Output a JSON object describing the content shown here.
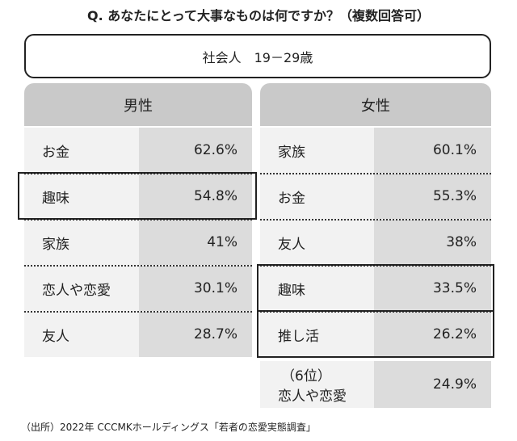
{
  "question": "Q. あなたにとって大事なものは何ですか？（複数回答可）",
  "segment": "社会人　19－29歳",
  "columns": [
    {
      "header": "男性",
      "rows": [
        {
          "item": "お金",
          "value": "62.6%"
        },
        {
          "item": "趣味",
          "value": "54.8%"
        },
        {
          "item": "家族",
          "value": "41%"
        },
        {
          "item": "恋人や恋愛",
          "value": "30.1%"
        },
        {
          "item": "友人",
          "value": "28.7%"
        }
      ]
    },
    {
      "header": "女性",
      "rows": [
        {
          "item": "家族",
          "value": "60.1%"
        },
        {
          "item": "お金",
          "value": "55.3%"
        },
        {
          "item": "友人",
          "value": "38%"
        },
        {
          "item": "趣味",
          "value": "33.5%"
        },
        {
          "item": "推し活",
          "value": "26.2%"
        },
        {
          "rank": "（6位）",
          "item": "恋人や恋愛",
          "value": "24.9%"
        }
      ]
    }
  ],
  "source": "（出所）2022年 CCCMKホールディングス「若者の恋愛実態調査」"
}
